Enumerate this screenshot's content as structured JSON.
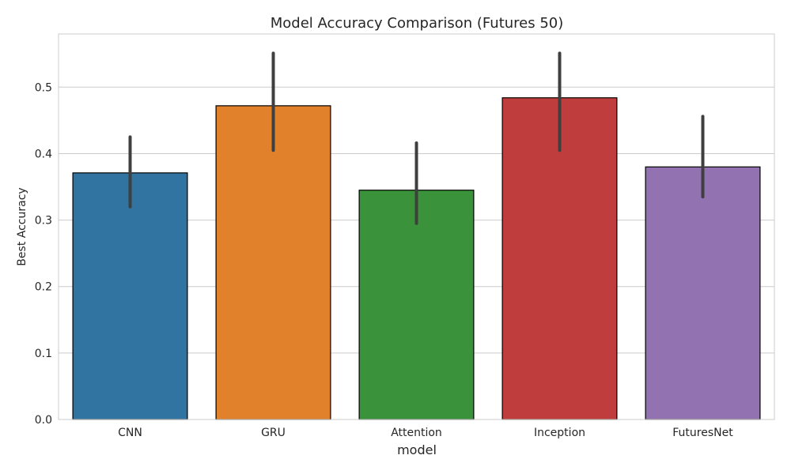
{
  "chart_data": {
    "type": "bar",
    "title": "Model Accuracy Comparison (Futures 50)",
    "xlabel": "model",
    "ylabel": "Best Accuracy",
    "categories": [
      "CNN",
      "GRU",
      "Attention",
      "Inception",
      "FuturesNet"
    ],
    "values": [
      0.371,
      0.472,
      0.345,
      0.484,
      0.38
    ],
    "error_low": [
      0.32,
      0.405,
      0.295,
      0.405,
      0.335
    ],
    "error_high": [
      0.425,
      0.551,
      0.416,
      0.551,
      0.456
    ],
    "ylim": [
      0,
      0.58
    ],
    "yticks": [
      0.0,
      0.1,
      0.2,
      0.3,
      0.4,
      0.5
    ],
    "ytick_labels": [
      "0.0",
      "0.1",
      "0.2",
      "0.3",
      "0.4",
      "0.5"
    ],
    "grid": true,
    "colors": [
      "#3274a1",
      "#e1812c",
      "#3a923a",
      "#c03d3e",
      "#9372b2"
    ],
    "errorbar_color": "#3f3f3f",
    "gridline_color": "#cccccc",
    "frame_color": "#cccccc",
    "bar_edge_color": "#000000"
  }
}
